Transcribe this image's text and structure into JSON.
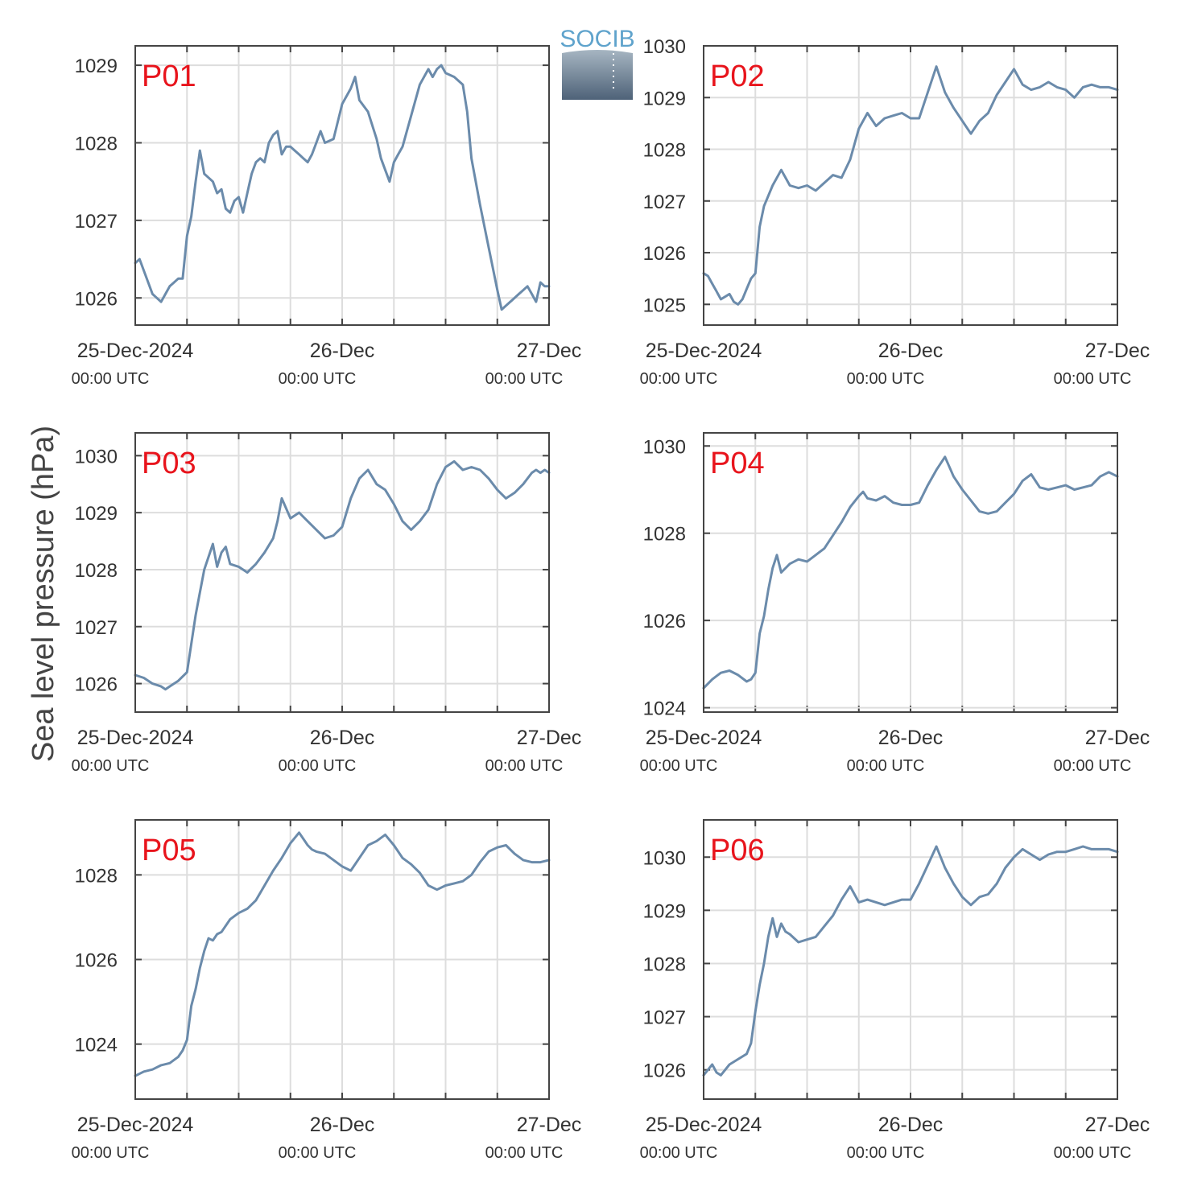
{
  "figure": {
    "ylabel": "Sea level pressure (hPa)",
    "logo_text": "SOCIB",
    "colors": {
      "line": "#6b8bab",
      "label": "#e8141c",
      "frame": "#444444",
      "grid": "#dddddd",
      "text": "#333333"
    }
  },
  "x_ticks": [
    {
      "hours": 0,
      "date": "25-Dec-2024",
      "time": "00:00 UTC"
    },
    {
      "hours": 24,
      "date": "26-Dec",
      "time": "00:00 UTC"
    },
    {
      "hours": 48,
      "date": "27-Dec",
      "time": "00:00 UTC"
    }
  ],
  "chart_data": [
    {
      "type": "line",
      "label": "P01",
      "x_range_hours": [
        0,
        48
      ],
      "ylim": [
        1025.65,
        1029.25
      ],
      "yticks": [
        1026,
        1027,
        1028,
        1029
      ],
      "x": [
        0,
        0.5,
        1,
        2,
        2.5,
        3,
        3.5,
        4,
        4.5,
        5,
        5.5,
        6,
        6.5,
        7,
        7.5,
        8,
        9,
        9.5,
        10,
        10.5,
        11,
        11.5,
        12,
        12.5,
        13,
        13.5,
        14,
        14.5,
        15,
        15.5,
        16,
        16.5,
        17,
        17.5,
        18,
        18.5,
        19,
        19.5,
        20,
        20.5,
        21,
        21.5,
        22,
        23,
        24,
        25,
        25.5,
        26,
        27,
        28,
        28.5,
        29,
        29.5,
        30,
        30.5,
        31,
        32,
        33,
        34,
        34.5,
        35,
        35.5,
        36,
        37,
        38,
        38.5,
        39,
        40,
        41,
        42,
        42.5,
        43,
        44,
        44.5,
        45,
        45.5,
        46,
        46.5,
        47,
        47.5,
        48
      ],
      "y": [
        1026.45,
        1026.5,
        1026.35,
        1026.05,
        1026.0,
        1025.95,
        1026.05,
        1026.15,
        1026.2,
        1026.25,
        1026.25,
        1026.8,
        1027.05,
        1027.5,
        1027.9,
        1027.6,
        1027.5,
        1027.35,
        1027.4,
        1027.15,
        1027.1,
        1027.25,
        1027.3,
        1027.1,
        1027.35,
        1027.6,
        1027.75,
        1027.8,
        1027.75,
        1028.0,
        1028.1,
        1028.15,
        1027.85,
        1027.95,
        1027.95,
        1027.9,
        1027.85,
        1027.8,
        1027.75,
        1027.85,
        1028.0,
        1028.15,
        1028.0,
        1028.05,
        1028.5,
        1028.7,
        1028.85,
        1028.55,
        1028.4,
        1028.05,
        1027.8,
        1027.65,
        1027.5,
        1027.75,
        1027.85,
        1027.95,
        1028.35,
        1028.75,
        1028.95,
        1028.85,
        1028.95,
        1029.0,
        1028.9,
        1028.85,
        1028.75,
        1028.4,
        1027.8,
        1027.2,
        1026.65,
        1026.1,
        1025.85,
        1025.9,
        1026.0,
        1026.05,
        1026.1,
        1026.15,
        1026.05,
        1025.95,
        1026.2,
        1026.15,
        1026.15
      ]
    },
    {
      "type": "line",
      "label": "P02",
      "x_range_hours": [
        0,
        48
      ],
      "ylim": [
        1024.6,
        1030.0
      ],
      "yticks": [
        1025,
        1026,
        1027,
        1028,
        1029,
        1030
      ],
      "x": [
        0,
        0.5,
        1,
        1.5,
        2,
        2.5,
        3,
        3.5,
        4,
        4.5,
        5,
        5.5,
        6,
        6.5,
        7,
        8,
        9,
        10,
        11,
        12,
        13,
        14,
        15,
        16,
        17,
        18,
        19,
        20,
        21,
        22,
        23,
        24,
        25,
        26,
        27,
        28,
        29,
        30,
        31,
        32,
        33,
        34,
        35,
        36,
        37,
        38,
        39,
        40,
        41,
        42,
        43,
        44,
        45,
        46,
        47,
        48
      ],
      "y": [
        1025.6,
        1025.55,
        1025.4,
        1025.25,
        1025.1,
        1025.15,
        1025.2,
        1025.05,
        1025.0,
        1025.1,
        1025.3,
        1025.5,
        1025.6,
        1026.5,
        1026.9,
        1027.3,
        1027.6,
        1027.3,
        1027.25,
        1027.3,
        1027.2,
        1027.35,
        1027.5,
        1027.45,
        1027.8,
        1028.4,
        1028.7,
        1028.45,
        1028.6,
        1028.65,
        1028.7,
        1028.6,
        1028.6,
        1029.1,
        1029.6,
        1029.1,
        1028.8,
        1028.55,
        1028.3,
        1028.55,
        1028.7,
        1029.05,
        1029.3,
        1029.55,
        1029.25,
        1029.15,
        1029.2,
        1029.3,
        1029.2,
        1029.15,
        1029.0,
        1029.2,
        1029.25,
        1029.2,
        1029.2,
        1029.15
      ]
    },
    {
      "type": "line",
      "label": "P03",
      "x_range_hours": [
        0,
        48
      ],
      "ylim": [
        1025.5,
        1030.4
      ],
      "yticks": [
        1026,
        1027,
        1028,
        1029,
        1030
      ],
      "x": [
        0,
        1,
        2,
        3,
        3.5,
        4,
        5,
        6,
        7,
        7.5,
        8,
        9,
        9.5,
        10,
        10.5,
        11,
        12,
        13,
        14,
        15,
        16,
        16.5,
        17,
        18,
        19,
        20,
        21,
        22,
        23,
        24,
        25,
        26,
        27,
        28,
        29,
        30,
        31,
        32,
        33,
        34,
        35,
        36,
        37,
        38,
        39,
        40,
        41,
        42,
        43,
        44,
        45,
        46,
        46.5,
        47,
        47.5,
        48
      ],
      "y": [
        1026.15,
        1026.1,
        1026.0,
        1025.95,
        1025.9,
        1025.95,
        1026.05,
        1026.2,
        1027.2,
        1027.6,
        1028.0,
        1028.45,
        1028.05,
        1028.3,
        1028.4,
        1028.1,
        1028.05,
        1027.95,
        1028.1,
        1028.3,
        1028.55,
        1028.85,
        1029.25,
        1028.9,
        1029.0,
        1028.85,
        1028.7,
        1028.55,
        1028.6,
        1028.75,
        1029.25,
        1029.6,
        1029.75,
        1029.5,
        1029.4,
        1029.15,
        1028.85,
        1028.7,
        1028.85,
        1029.05,
        1029.5,
        1029.8,
        1029.9,
        1029.75,
        1029.8,
        1029.75,
        1029.6,
        1029.4,
        1029.25,
        1029.35,
        1029.5,
        1029.7,
        1029.75,
        1029.7,
        1029.75,
        1029.7
      ]
    },
    {
      "type": "line",
      "label": "P04",
      "x_range_hours": [
        0,
        48
      ],
      "ylim": [
        1023.9,
        1030.3
      ],
      "yticks": [
        1024,
        1026,
        1028,
        1030
      ],
      "x": [
        0,
        1,
        2,
        3,
        4,
        5,
        5.5,
        6,
        6.5,
        7,
        7.5,
        8,
        8.5,
        9,
        10,
        11,
        12,
        13,
        14,
        15,
        16,
        17,
        18,
        18.5,
        19,
        20,
        21,
        22,
        23,
        24,
        25,
        26,
        27,
        28,
        29,
        30,
        31,
        32,
        33,
        34,
        35,
        36,
        37,
        38,
        39,
        40,
        41,
        42,
        43,
        44,
        45,
        46,
        47,
        48
      ],
      "y": [
        1024.45,
        1024.65,
        1024.8,
        1024.85,
        1024.75,
        1024.6,
        1024.65,
        1024.8,
        1025.7,
        1026.1,
        1026.7,
        1027.2,
        1027.5,
        1027.1,
        1027.3,
        1027.4,
        1027.35,
        1027.5,
        1027.65,
        1027.95,
        1028.25,
        1028.6,
        1028.85,
        1028.95,
        1028.8,
        1028.75,
        1028.85,
        1028.7,
        1028.65,
        1028.65,
        1028.7,
        1029.1,
        1029.45,
        1029.75,
        1029.3,
        1029.0,
        1028.75,
        1028.5,
        1028.45,
        1028.5,
        1028.7,
        1028.9,
        1029.2,
        1029.35,
        1029.05,
        1029.0,
        1029.05,
        1029.1,
        1029.0,
        1029.05,
        1029.1,
        1029.3,
        1029.4,
        1029.3
      ]
    },
    {
      "type": "line",
      "label": "P05",
      "x_range_hours": [
        0,
        48
      ],
      "ylim": [
        1022.7,
        1029.3
      ],
      "yticks": [
        1024,
        1026,
        1028
      ],
      "x": [
        0,
        1,
        2,
        3,
        4,
        5,
        5.5,
        6,
        6.5,
        7,
        7.5,
        8,
        8.5,
        9,
        9.5,
        10,
        11,
        12,
        13,
        14,
        15,
        16,
        17,
        18,
        19,
        20,
        20.5,
        21,
        22,
        23,
        24,
        25,
        26,
        27,
        28,
        29,
        30,
        31,
        32,
        33,
        34,
        35,
        36,
        37,
        38,
        39,
        40,
        41,
        42,
        43,
        44,
        45,
        46,
        47,
        48
      ],
      "y": [
        1023.25,
        1023.35,
        1023.4,
        1023.5,
        1023.55,
        1023.7,
        1023.85,
        1024.1,
        1024.9,
        1025.3,
        1025.8,
        1026.2,
        1026.5,
        1026.45,
        1026.6,
        1026.65,
        1026.95,
        1027.1,
        1027.2,
        1027.4,
        1027.75,
        1028.1,
        1028.4,
        1028.75,
        1029.0,
        1028.7,
        1028.6,
        1028.55,
        1028.5,
        1028.35,
        1028.2,
        1028.1,
        1028.4,
        1028.7,
        1028.8,
        1028.95,
        1028.7,
        1028.4,
        1028.25,
        1028.05,
        1027.75,
        1027.65,
        1027.75,
        1027.8,
        1027.85,
        1028.0,
        1028.3,
        1028.55,
        1028.65,
        1028.7,
        1028.5,
        1028.35,
        1028.3,
        1028.3,
        1028.35
      ]
    },
    {
      "type": "line",
      "label": "P06",
      "x_range_hours": [
        0,
        48
      ],
      "ylim": [
        1025.45,
        1030.7
      ],
      "yticks": [
        1026,
        1027,
        1028,
        1029,
        1030
      ],
      "x": [
        0,
        0.5,
        1,
        1.5,
        2,
        3,
        4,
        5,
        5.5,
        6,
        6.5,
        7,
        7.5,
        8,
        8.5,
        9,
        9.5,
        10,
        11,
        12,
        13,
        14,
        15,
        16,
        17,
        18,
        19,
        20,
        21,
        22,
        23,
        24,
        25,
        26,
        27,
        28,
        29,
        30,
        31,
        32,
        33,
        34,
        35,
        36,
        37,
        38,
        39,
        40,
        41,
        42,
        43,
        44,
        45,
        46,
        47,
        48
      ],
      "y": [
        1025.9,
        1026.0,
        1026.1,
        1025.95,
        1025.9,
        1026.1,
        1026.2,
        1026.3,
        1026.5,
        1027.1,
        1027.6,
        1028.0,
        1028.5,
        1028.85,
        1028.5,
        1028.75,
        1028.6,
        1028.55,
        1028.4,
        1028.45,
        1028.5,
        1028.7,
        1028.9,
        1029.2,
        1029.45,
        1029.15,
        1029.2,
        1029.15,
        1029.1,
        1029.15,
        1029.2,
        1029.2,
        1029.5,
        1029.85,
        1030.2,
        1029.8,
        1029.5,
        1029.25,
        1029.1,
        1029.25,
        1029.3,
        1029.5,
        1029.8,
        1030.0,
        1030.15,
        1030.05,
        1029.95,
        1030.05,
        1030.1,
        1030.1,
        1030.15,
        1030.2,
        1030.15,
        1030.15,
        1030.15,
        1030.1
      ]
    }
  ]
}
